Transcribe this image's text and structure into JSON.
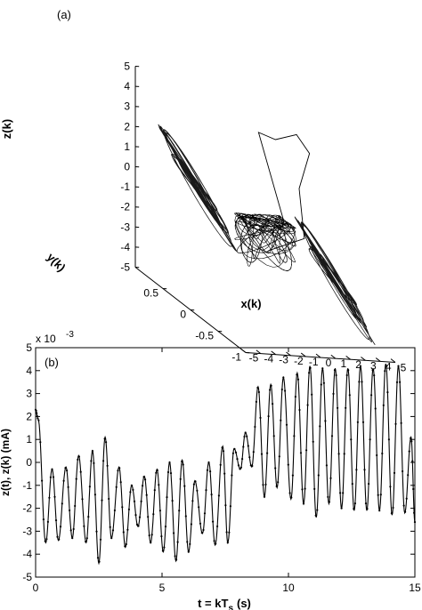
{
  "chart_data": [
    {
      "type": "line3d",
      "panel_label": "(a)",
      "xlabel": "x(k)",
      "ylabel": "y(k)",
      "zlabel": "z(k)",
      "x_ticks": [
        "-5",
        "-4",
        "-3",
        "-2",
        "-1",
        "0",
        "1",
        "2",
        "3",
        "4",
        "5"
      ],
      "y_ticks": [
        "-1",
        "-0.5",
        "0",
        "0.5"
      ],
      "z_ticks": [
        "5",
        "4",
        "3",
        "2",
        "1",
        "0",
        "-1",
        "-2",
        "-3",
        "-4",
        "-5"
      ],
      "xlim": [
        -5,
        5
      ],
      "ylim": [
        -1,
        1
      ],
      "zlim": [
        -5,
        5
      ],
      "grid": false,
      "attractor": {
        "lobes": [
          {
            "center": [
              -3.3,
              0.35,
              0.5
            ],
            "major_radius": 2.6,
            "minor_radius": 0.9,
            "z_amplitude": 2.7
          },
          {
            "center": [
              3.3,
              -0.35,
              -2.3
            ],
            "major_radius": 2.6,
            "minor_radius": 0.9,
            "z_amplitude": 2.7
          }
        ],
        "transient_path": [
          [
            0.5,
            -0.2,
            0.1
          ],
          [
            2.5,
            0.8,
            2.5
          ],
          [
            4.0,
            0.9,
            2.0
          ],
          [
            4.3,
            0.6,
            2.9
          ],
          [
            4.8,
            0.5,
            2.2
          ],
          [
            3.0,
            0.2,
            1.0
          ],
          [
            1.5,
            -0.3,
            -0.5
          ],
          [
            0.2,
            0.0,
            -1.8
          ]
        ]
      }
    },
    {
      "type": "line",
      "panel_label": "(b)",
      "xlabel": "t = kT",
      "xlabel_sub": "s",
      "xlabel_unit": "(s)",
      "ylabel": "z(t),  z(k)  (mA)",
      "y_exponent_label": "x 10",
      "y_exponent": "-3",
      "xlim": [
        0,
        15
      ],
      "ylim": [
        -5,
        5
      ],
      "x_ticks": [
        "0",
        "5",
        "10",
        "15"
      ],
      "y_ticks": [
        "5",
        "4",
        "3",
        "2",
        "1",
        "0",
        "-1",
        "-2",
        "-3",
        "-4",
        "-5"
      ],
      "grid": false,
      "series": [
        {
          "style": "solid line with dot markers",
          "x": [
            0.0,
            0.1,
            0.4,
            0.65,
            0.9,
            1.2,
            1.45,
            1.7,
            2.0,
            2.25,
            2.5,
            2.75,
            3.0,
            3.3,
            3.55,
            3.8,
            4.05,
            4.3,
            4.55,
            4.8,
            5.05,
            5.3,
            5.55,
            5.8,
            6.05,
            6.3,
            6.6,
            6.85,
            7.1,
            7.4,
            7.6,
            7.85,
            8.1,
            8.3,
            8.55,
            8.8,
            9.05,
            9.3,
            9.55,
            9.8,
            10.1,
            10.35,
            10.6,
            10.85,
            11.1,
            11.35,
            11.6,
            11.85,
            12.1,
            12.35,
            12.6,
            12.85,
            13.1,
            13.35,
            13.6,
            13.85,
            14.1,
            14.35,
            14.6,
            14.85,
            15.0
          ],
          "y": [
            2.3,
            1.9,
            -3.5,
            -0.3,
            -3.4,
            -0.2,
            -3.3,
            0.3,
            -3.5,
            0.5,
            -4.4,
            1.1,
            -3.3,
            -0.2,
            -3.7,
            -1.0,
            -2.8,
            -0.6,
            -3.5,
            -0.3,
            -3.9,
            0.0,
            -4.3,
            0.1,
            -3.9,
            -0.8,
            -3.1,
            0.0,
            -3.6,
            0.7,
            -3.5,
            0.6,
            -0.3,
            1.3,
            -0.2,
            3.3,
            -1.5,
            3.4,
            -1.1,
            3.7,
            -1.6,
            3.9,
            -1.8,
            4.2,
            -2.4,
            4.1,
            -1.8,
            4.1,
            -2.0,
            4.1,
            -2.1,
            4.2,
            -2.1,
            4.1,
            -2.1,
            4.3,
            -2.3,
            4.2,
            -2.2,
            1.1,
            -2.6
          ]
        }
      ]
    }
  ]
}
